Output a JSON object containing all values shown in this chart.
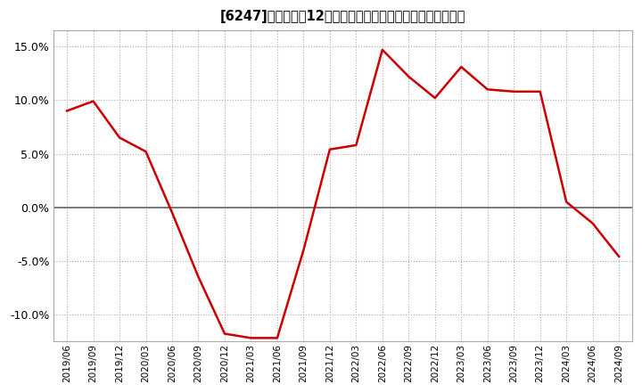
{
  "title": "[6247]　売上高の12か月移動合計の対前年同期増減率の推移",
  "line_color": "#cc0000",
  "background_color": "#ffffff",
  "plot_background": "#ffffff",
  "grid_color": "#aaaaaa",
  "zero_line_color": "#666666",
  "border_color": "#aaaaaa",
  "ylim": [
    -0.125,
    0.165
  ],
  "yticks": [
    -0.1,
    -0.05,
    0.0,
    0.05,
    0.1,
    0.15
  ],
  "dates": [
    "2019/06",
    "2019/09",
    "2019/12",
    "2020/03",
    "2020/06",
    "2020/09",
    "2020/12",
    "2021/03",
    "2021/06",
    "2021/09",
    "2021/12",
    "2022/03",
    "2022/06",
    "2022/09",
    "2022/12",
    "2023/03",
    "2023/06",
    "2023/09",
    "2023/12",
    "2024/03",
    "2024/06",
    "2024/09"
  ],
  "values": [
    0.09,
    0.099,
    0.065,
    0.052,
    -0.005,
    -0.065,
    -0.118,
    -0.122,
    -0.122,
    -0.04,
    0.054,
    0.058,
    0.147,
    0.122,
    0.102,
    0.131,
    0.11,
    0.108,
    0.108,
    0.005,
    -0.015,
    -0.046
  ]
}
